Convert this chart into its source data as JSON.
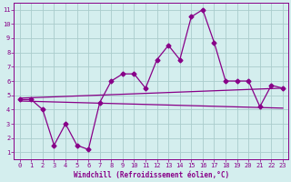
{
  "zigzag_x": [
    0,
    1,
    2,
    3,
    4,
    5,
    6,
    7,
    8,
    9,
    10,
    11,
    12,
    13,
    14,
    15,
    16,
    17,
    18,
    19,
    20,
    21,
    22,
    23
  ],
  "zigzag_y": [
    4.7,
    4.7,
    4.0,
    1.5,
    3.0,
    1.5,
    1.2,
    4.5,
    6.0,
    6.5,
    6.5,
    5.5,
    7.5,
    8.5,
    7.5,
    10.5,
    11.0,
    8.7,
    6.0,
    6.0,
    6.0,
    4.2,
    5.7,
    5.5
  ],
  "line1_x": [
    0,
    23
  ],
  "line1_y": [
    4.8,
    5.5
  ],
  "line2_x": [
    0,
    23
  ],
  "line2_y": [
    4.6,
    4.1
  ],
  "line_color": "#880088",
  "bg_color": "#d4eeee",
  "grid_color": "#aacccc",
  "xlabel": "Windchill (Refroidissement éolien,°C)",
  "xlim": [
    -0.5,
    23.5
  ],
  "ylim": [
    0.5,
    11.5
  ],
  "yticks": [
    1,
    2,
    3,
    4,
    5,
    6,
    7,
    8,
    9,
    10,
    11
  ],
  "xticks": [
    0,
    1,
    2,
    3,
    4,
    5,
    6,
    7,
    8,
    9,
    10,
    11,
    12,
    13,
    14,
    15,
    16,
    17,
    18,
    19,
    20,
    21,
    22,
    23
  ],
  "marker": "D",
  "markersize": 2.5,
  "linewidth": 0.9,
  "tick_fontsize": 5.0,
  "xlabel_fontsize": 5.5
}
